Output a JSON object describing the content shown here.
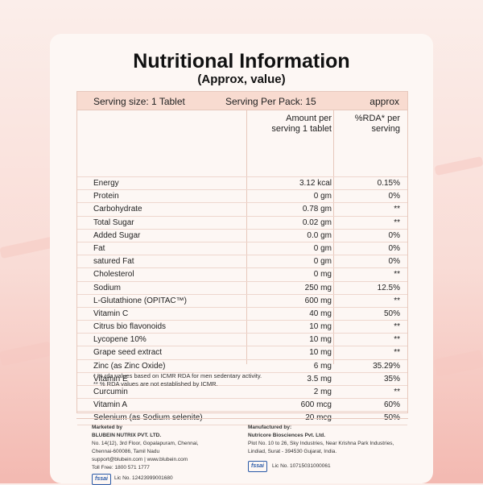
{
  "header": {
    "title": "Nutritional Information",
    "subtitle": "(Approx, value)"
  },
  "serving": {
    "size": "Serving size: 1 Tablet",
    "per_pack": "Serving Per Pack: 15",
    "approx": "approx"
  },
  "columns": {
    "amount_1": "Amount per",
    "amount_2": "serving 1 tablet",
    "rda_1": "%RDA* per",
    "rda_2": "serving"
  },
  "rows": [
    {
      "name": "Energy",
      "amount": "3.12 kcal",
      "rda": "0.15%"
    },
    {
      "name": "Protein",
      "amount": "0 gm",
      "rda": "0%"
    },
    {
      "name": "Carbohydrate",
      "amount": "0.78 gm",
      "rda": "**"
    },
    {
      "name": "Total Sugar",
      "amount": "0.02 gm",
      "rda": "**"
    },
    {
      "name": "Added Sugar",
      "amount": "0.0 gm",
      "rda": "0%"
    },
    {
      "name": "Fat",
      "amount": "0 gm",
      "rda": "0%"
    },
    {
      "name": "satured Fat",
      "amount": "0 gm",
      "rda": "0%"
    },
    {
      "name": "Cholesterol",
      "amount": "0 mg",
      "rda": "**"
    },
    {
      "name": "Sodium",
      "amount": "250 mg",
      "rda": "12.5%"
    },
    {
      "name": "L-Glutathione (OPITAC™)",
      "amount": "600 mg",
      "rda": "**"
    },
    {
      "name": "Vitamin C",
      "amount": "40 mg",
      "rda": "50%"
    },
    {
      "name": "Citrus bio flavonoids",
      "amount": "10 mg",
      "rda": "**"
    },
    {
      "name": "Lycopene 10%",
      "amount": "10 mg",
      "rda": "**"
    },
    {
      "name": "Grape seed extract",
      "amount": "10 mg",
      "rda": "**"
    },
    {
      "name": "Zinc (as Zinc Oxide)",
      "amount": "6 mg",
      "rda": "35.29%"
    },
    {
      "name": "Vitamin E",
      "amount": "3.5 mg",
      "rda": "35%"
    },
    {
      "name": "Curcumin",
      "amount": "2 mg",
      "rda": "**"
    },
    {
      "name": "Vitamin A",
      "amount": "600 mcg",
      "rda": "60%"
    },
    {
      "name": "Selenium (as Sodium selenite)",
      "amount": "20 mcg",
      "rda": "50%"
    }
  ],
  "notes": {
    "note_1": "* % rda values based on ICMR RDA for men sedentary activity.",
    "note_2": "** % RDA values are not established by ICMR."
  },
  "marketer": {
    "label": "Marketed by",
    "company": "BLUBEIN NUTRIX PVT. LTD.",
    "address_1": "No. 14(12), 3rd Floor, Gopalapuram, Chennai,",
    "address_2": "Chennai-600086, Tamil Nadu",
    "contact": "support@blubein.com | www.blubein.com",
    "toll_free": "Toll Free: 1800 571 1777",
    "fssai_logo": "fssai",
    "license": "Lic No. 12423999001680"
  },
  "manufacturer": {
    "label": "Manufactured by:",
    "company": "Nutricore Biosciences Pvt. Ltd.",
    "address_1": "Plot No. 10 to 26, Sky Industries, Near Krishna Park Industries,",
    "address_2": "Lindiad, Surat - 394530 Gujarat, India.",
    "fssai_logo": "fssai",
    "license": "Lic No. 10715031000061"
  }
}
